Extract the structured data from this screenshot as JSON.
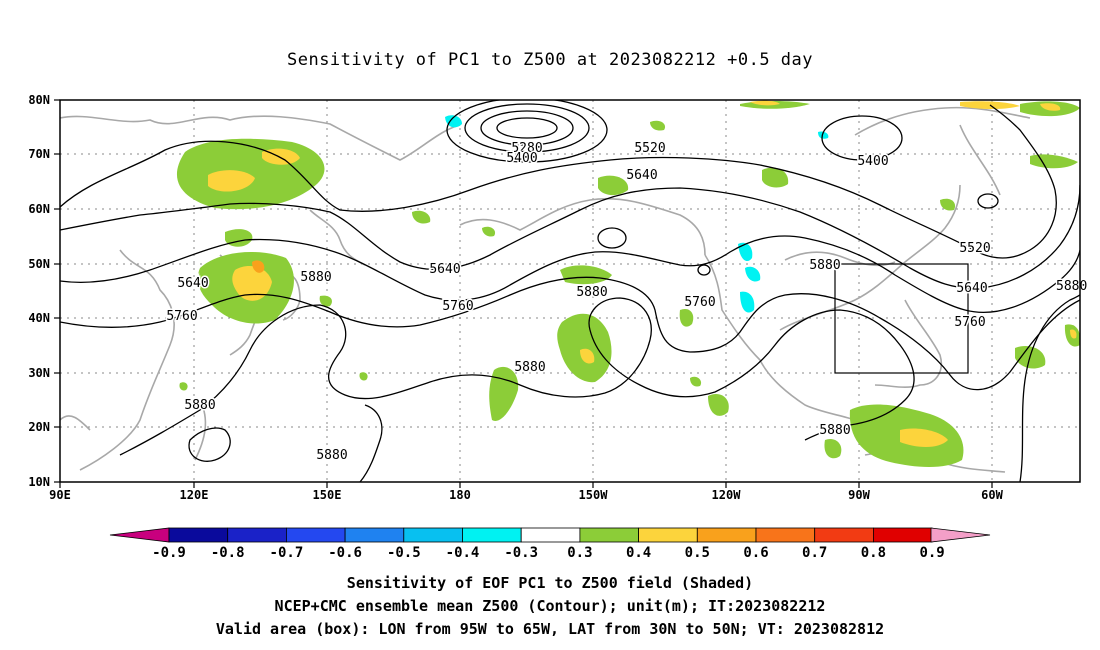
{
  "title": "Sensitivity of PC1 to Z500 at 2023082212 +0.5 day",
  "map": {
    "lon_labels": [
      "90E",
      "120E",
      "150E",
      "180",
      "150W",
      "120W",
      "90W",
      "60W"
    ],
    "lat_labels": [
      "80N",
      "70N",
      "60N",
      "50N",
      "40N",
      "30N",
      "20N",
      "10N"
    ],
    "contour_levels": [
      "5280",
      "5400",
      "5520",
      "5640",
      "5760",
      "5880"
    ],
    "valid_box": {
      "lon_from": "95W",
      "lon_to": "65W",
      "lat_from": "30N",
      "lat_to": "50N"
    }
  },
  "colorbar": {
    "labels": [
      "-0.9",
      "-0.8",
      "-0.7",
      "-0.6",
      "-0.5",
      "-0.4",
      "-0.3",
      "0.3",
      "0.4",
      "0.5",
      "0.6",
      "0.7",
      "0.8",
      "0.9"
    ],
    "colors": [
      "#c8007e",
      "#0a0a9c",
      "#1a22c8",
      "#2448f0",
      "#1f82f0",
      "#08c0f0",
      "#00f2f2",
      "#ffffff",
      "#8ccd38",
      "#fcd43c",
      "#f9a11c",
      "#f8741a",
      "#f23b13",
      "#e00000",
      "#f49fc8"
    ]
  },
  "captions": {
    "line1": "Sensitivity of EOF PC1 to Z500 field (Shaded)",
    "line2": "NCEP+CMC ensemble mean Z500 (Contour); unit(m); IT:2023082212",
    "line3": "Valid area (box): LON from 95W to 65W, LAT from 30N to 50N; VT: 2023082812"
  }
}
